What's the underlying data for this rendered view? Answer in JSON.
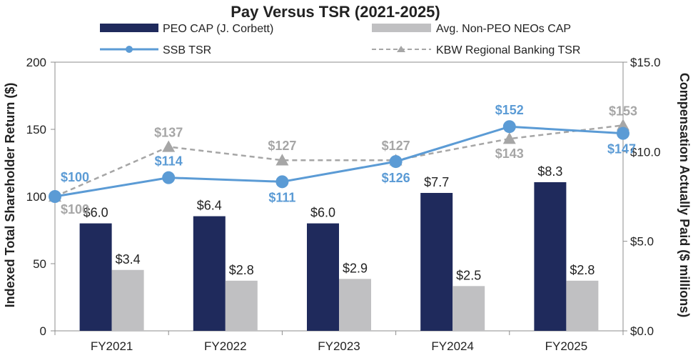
{
  "chart_data": {
    "type": "bar+line",
    "title": "Pay Versus TSR (2021-2025)",
    "categories": [
      "FY2021",
      "FY2022",
      "FY2023",
      "FY2024",
      "FY2025"
    ],
    "left_axis": {
      "label": "Indexed Total Shareholder Return ($)",
      "ylim": [
        0,
        200
      ],
      "ticks": [
        0,
        50,
        100,
        150,
        200
      ],
      "tick_labels": [
        "0",
        "50",
        "100",
        "150",
        "200"
      ]
    },
    "right_axis": {
      "label": "Compensation Actually Paid ($ millions)",
      "ylim": [
        0,
        15
      ],
      "ticks": [
        0,
        5,
        10,
        15
      ],
      "tick_labels": [
        "$0.0",
        "$5.0",
        "$10.0",
        "$15.0"
      ]
    },
    "grid": false,
    "legend_position": "top",
    "bar_series": [
      {
        "name": "PEO CAP (J. Corbett)",
        "axis": "right",
        "color": "#1f2a5c",
        "values": [
          6.0,
          6.4,
          6.0,
          7.7,
          8.3
        ],
        "labels": [
          "$6.0",
          "$6.4",
          "$6.0",
          "$7.7",
          "$8.3"
        ]
      },
      {
        "name": "Avg. Non-PEO NEOs CAP",
        "axis": "right",
        "color": "#c0c0c2",
        "values": [
          3.4,
          2.8,
          2.9,
          2.5,
          2.8
        ],
        "labels": [
          "$3.4",
          "$2.8",
          "$2.9",
          "$2.5",
          "$2.8"
        ]
      }
    ],
    "line_series": [
      {
        "name": "SSB TSR",
        "axis": "left",
        "color": "#5b9bd5",
        "marker": "circle",
        "values": [
          100,
          114,
          111,
          126,
          152,
          147
        ],
        "x_positions": [
          0,
          1,
          2,
          3,
          4,
          5
        ],
        "labels": [
          "$100",
          "$114",
          "$111",
          "$126",
          "$152",
          "$147"
        ]
      },
      {
        "name": "KBW Regional Banking TSR",
        "axis": "left",
        "color": "#a6a6a6",
        "marker": "triangle",
        "dashed": true,
        "values": [
          100,
          137,
          127,
          127,
          143,
          153
        ],
        "x_positions": [
          0,
          1,
          2,
          3,
          4,
          5
        ],
        "labels": [
          "$100",
          "$137",
          "$127",
          "$127",
          "$143",
          "$153"
        ]
      }
    ]
  }
}
